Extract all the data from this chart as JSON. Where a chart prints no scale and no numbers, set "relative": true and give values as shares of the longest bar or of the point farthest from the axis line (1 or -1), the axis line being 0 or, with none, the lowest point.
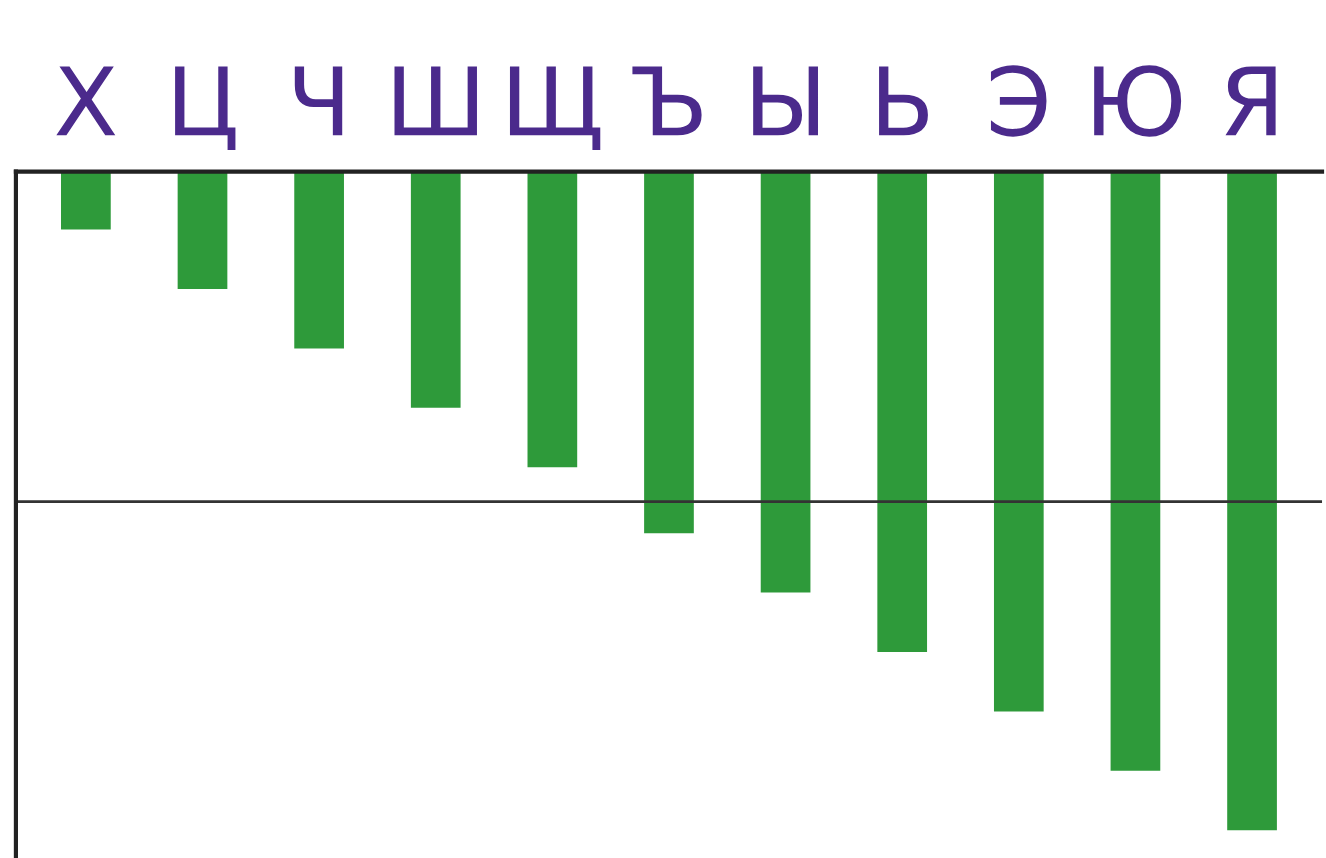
{
  "chart_data": {
    "type": "bar",
    "relative": true,
    "categories": [
      "Х",
      "Ц",
      "Ч",
      "Ш",
      "Щ",
      "Ъ",
      "Ы",
      "Ь",
      "Э",
      "Ю",
      "Я"
    ],
    "values": [
      -0.09,
      -0.18,
      -0.27,
      -0.36,
      -0.45,
      -0.55,
      -0.64,
      -0.73,
      -0.82,
      -0.91,
      -1
    ],
    "color": "#2e9a3a",
    "ref_lines": [
      {
        "axis": "y",
        "value": -0.5,
        "color": "#333333"
      }
    ],
    "grid": false,
    "legend": false
  }
}
